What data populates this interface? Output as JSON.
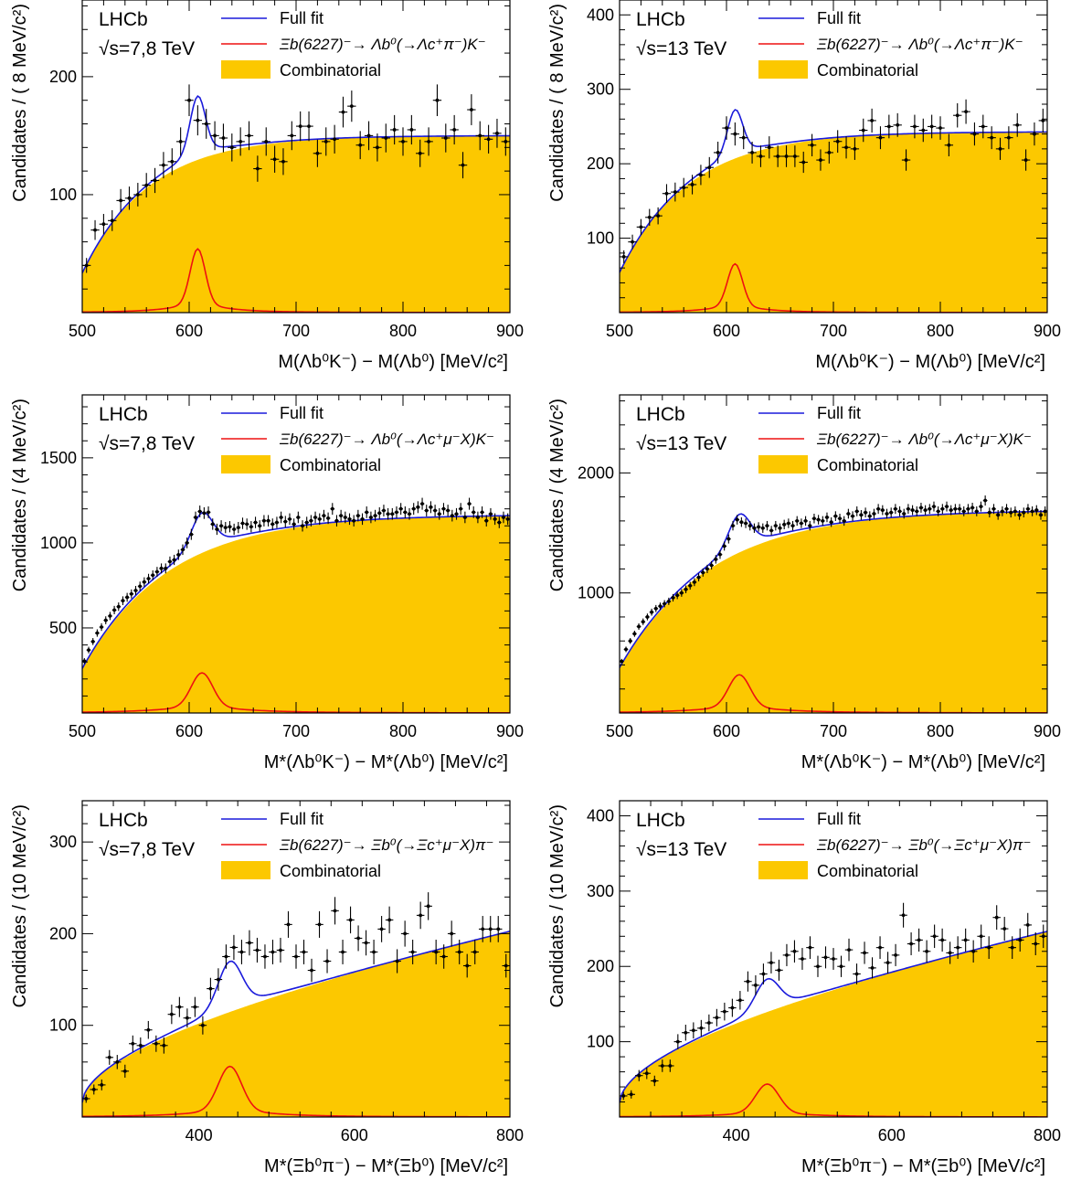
{
  "chart_data": [
    {
      "id": "p1",
      "type": "scatter",
      "experiment": "LHCb",
      "energy": "√s=7,8 TeV",
      "ylabel": "Candidates / ( 8 MeV/c²)",
      "xlabel": "M(Λb⁰K⁻) − M(Λb⁰) [MeV/c²]",
      "xlim": [
        500,
        900
      ],
      "ylim": [
        0,
        265
      ],
      "xticks": [
        500,
        600,
        700,
        800,
        900
      ],
      "yticks": [
        100,
        200
      ],
      "legend": {
        "position": "top",
        "full_fit": "Full fit",
        "signal": "Ξb(6227)⁻→ Λb⁰(→Λc⁺π⁻)K⁻",
        "background": "Combinatorial"
      },
      "colors": {
        "full_fit": "#1a1adb",
        "signal": "#ee1111",
        "background": "#fcc800"
      },
      "model": {
        "bkg_a": 150,
        "bkg_tau": 62,
        "bkg_plateau": 0.0,
        "sig_amp": 47,
        "sig_mean": 608,
        "sig_sigma": 7,
        "sig_tail": 0.15,
        "sig_tail_w": 30
      },
      "points": {
        "x": [
          504,
          512,
          520,
          528,
          536,
          544,
          552,
          560,
          568,
          576,
          584,
          592,
          600,
          608,
          616,
          624,
          632,
          640,
          648,
          656,
          664,
          672,
          680,
          688,
          696,
          704,
          712,
          720,
          728,
          736,
          744,
          752,
          760,
          768,
          776,
          784,
          792,
          800,
          808,
          816,
          824,
          832,
          840,
          848,
          856,
          864,
          872,
          880,
          888,
          896
        ],
        "y": [
          40,
          70,
          75,
          78,
          95,
          97,
          100,
          108,
          112,
          125,
          128,
          145,
          180,
          163,
          160,
          150,
          148,
          140,
          145,
          150,
          122,
          145,
          130,
          128,
          150,
          158,
          158,
          135,
          145,
          147,
          170,
          175,
          142,
          150,
          140,
          148,
          155,
          145,
          155,
          135,
          145,
          180,
          148,
          155,
          125,
          172,
          150,
          147,
          152,
          145
        ]
      }
    },
    {
      "id": "p2",
      "type": "scatter",
      "experiment": "LHCb",
      "energy": "√s=13 TeV",
      "ylabel": "Candidates / ( 8 MeV/c²)",
      "xlabel": "M(Λb⁰K⁻) − M(Λb⁰) [MeV/c²]",
      "xlim": [
        500,
        900
      ],
      "ylim": [
        0,
        420
      ],
      "xticks": [
        500,
        600,
        700,
        800,
        900
      ],
      "yticks": [
        100,
        200,
        300,
        400
      ],
      "legend": {
        "position": "top",
        "full_fit": "Full fit",
        "signal": "Ξb(6227)⁻→ Λb⁰(→Λc⁺π⁻)K⁻",
        "background": "Combinatorial"
      },
      "colors": {
        "full_fit": "#1a1adb",
        "signal": "#ee1111",
        "background": "#fcc800"
      },
      "model": {
        "bkg_a": 243,
        "bkg_tau": 65,
        "bkg_plateau": 0.0,
        "sig_amp": 57,
        "sig_mean": 608,
        "sig_sigma": 7,
        "sig_tail": 0.15,
        "sig_tail_w": 30
      },
      "points": {
        "x": [
          504,
          512,
          520,
          528,
          536,
          544,
          552,
          560,
          568,
          576,
          584,
          592,
          600,
          608,
          616,
          624,
          632,
          640,
          648,
          656,
          664,
          672,
          680,
          688,
          696,
          704,
          712,
          720,
          728,
          736,
          744,
          752,
          760,
          768,
          776,
          784,
          792,
          800,
          808,
          816,
          824,
          832,
          840,
          848,
          856,
          864,
          872,
          880,
          888,
          896
        ],
        "y": [
          75,
          95,
          115,
          128,
          130,
          160,
          162,
          168,
          172,
          185,
          195,
          215,
          248,
          240,
          235,
          215,
          210,
          222,
          210,
          210,
          210,
          202,
          225,
          205,
          215,
          230,
          222,
          220,
          245,
          258,
          235,
          250,
          252,
          205,
          250,
          245,
          250,
          248,
          225,
          265,
          270,
          240,
          250,
          235,
          220,
          235,
          252,
          205,
          240,
          258
        ]
      }
    },
    {
      "id": "p3",
      "type": "scatter",
      "experiment": "LHCb",
      "energy": "√s=7,8 TeV",
      "ylabel": "Candidates / (4 MeV/c²)",
      "xlabel": "M*(Λb⁰K⁻) − M*(Λb⁰) [MeV/c²]",
      "xlim": [
        500,
        900
      ],
      "ylim": [
        0,
        1870
      ],
      "xticks": [
        500,
        600,
        700,
        800,
        900
      ],
      "yticks": [
        500,
        1000,
        1500
      ],
      "legend": {
        "position": "top",
        "full_fit": "Full fit",
        "signal": "Ξb(6227)⁻→ Λb⁰(→Λc⁺μ⁻X)K⁻",
        "background": "Combinatorial"
      },
      "colors": {
        "full_fit": "#1a1adb",
        "signal": "#ee1111",
        "background": "#fcc800"
      },
      "model": {
        "bkg_a": 1165,
        "bkg_tau": 80,
        "bkg_plateau": 0.0,
        "sig_amp": 200,
        "sig_mean": 612,
        "sig_sigma": 10,
        "sig_tail": 0.18,
        "sig_tail_w": 45
      },
      "points": {
        "x": [
          502,
          506,
          510,
          514,
          518,
          522,
          526,
          530,
          534,
          538,
          542,
          546,
          550,
          554,
          558,
          562,
          566,
          570,
          574,
          578,
          582,
          586,
          590,
          594,
          598,
          602,
          606,
          610,
          614,
          618,
          622,
          626,
          630,
          634,
          638,
          642,
          646,
          650,
          654,
          658,
          662,
          666,
          670,
          674,
          678,
          682,
          686,
          690,
          694,
          698,
          702,
          706,
          710,
          714,
          718,
          722,
          726,
          730,
          734,
          738,
          742,
          746,
          750,
          754,
          758,
          762,
          766,
          770,
          774,
          778,
          782,
          786,
          790,
          794,
          798,
          802,
          806,
          810,
          814,
          818,
          822,
          826,
          830,
          834,
          838,
          842,
          846,
          850,
          854,
          858,
          862,
          866,
          870,
          874,
          878,
          882,
          886,
          890,
          894,
          898
        ],
        "y": [
          305,
          370,
          420,
          470,
          505,
          545,
          570,
          605,
          625,
          660,
          680,
          700,
          720,
          745,
          770,
          790,
          810,
          830,
          850,
          850,
          890,
          900,
          930,
          960,
          1000,
          1050,
          1150,
          1185,
          1175,
          1180,
          1110,
          1080,
          1100,
          1090,
          1095,
          1080,
          1090,
          1115,
          1110,
          1095,
          1120,
          1100,
          1130,
          1130,
          1110,
          1120,
          1150,
          1125,
          1140,
          1110,
          1150,
          1100,
          1120,
          1130,
          1150,
          1140,
          1160,
          1145,
          1200,
          1130,
          1160,
          1150,
          1140,
          1130,
          1160,
          1140,
          1180,
          1150,
          1160,
          1175,
          1190,
          1170,
          1170,
          1180,
          1200,
          1180,
          1170,
          1200,
          1210,
          1230,
          1190,
          1210,
          1190,
          1170,
          1200,
          1190,
          1160,
          1170,
          1200,
          1150,
          1230,
          1180,
          1150,
          1180,
          1130,
          1170,
          1140,
          1120,
          1150,
          1140
        ]
      }
    },
    {
      "id": "p4",
      "type": "scatter",
      "experiment": "LHCb",
      "energy": "√s=13 TeV",
      "ylabel": "Candidates / (4 MeV/c²)",
      "xlabel": "M*(Λb⁰K⁻) − M*(Λb⁰) [MeV/c²]",
      "xlim": [
        500,
        900
      ],
      "ylim": [
        0,
        2650
      ],
      "xticks": [
        500,
        600,
        700,
        800,
        900
      ],
      "yticks": [
        1000,
        2000
      ],
      "legend": {
        "position": "top",
        "full_fit": "Full fit",
        "signal": "Ξb(6227)⁻→ Λb⁰(→Λc⁺μ⁻X)K⁻",
        "background": "Combinatorial"
      },
      "colors": {
        "full_fit": "#1a1adb",
        "signal": "#ee1111",
        "background": "#fcc800"
      },
      "model": {
        "bkg_a": 1690,
        "bkg_tau": 85,
        "bkg_plateau": 0.0,
        "sig_amp": 270,
        "sig_mean": 612,
        "sig_sigma": 10,
        "sig_tail": 0.18,
        "sig_tail_w": 45
      },
      "points": {
        "x": [
          502,
          506,
          510,
          514,
          518,
          522,
          526,
          530,
          534,
          538,
          542,
          546,
          550,
          554,
          558,
          562,
          566,
          570,
          574,
          578,
          582,
          586,
          590,
          594,
          598,
          602,
          606,
          610,
          614,
          618,
          622,
          626,
          630,
          634,
          638,
          642,
          646,
          650,
          654,
          658,
          662,
          666,
          670,
          674,
          678,
          682,
          686,
          690,
          694,
          698,
          702,
          706,
          710,
          714,
          718,
          722,
          726,
          730,
          734,
          738,
          742,
          746,
          750,
          754,
          758,
          762,
          766,
          770,
          774,
          778,
          782,
          786,
          790,
          794,
          798,
          802,
          806,
          810,
          814,
          818,
          822,
          826,
          830,
          834,
          838,
          842,
          846,
          850,
          854,
          858,
          862,
          866,
          870,
          874,
          878,
          882,
          886,
          890,
          894,
          898
        ],
        "y": [
          430,
          530,
          600,
          660,
          720,
          760,
          800,
          840,
          870,
          890,
          910,
          930,
          960,
          980,
          1000,
          1030,
          1060,
          1090,
          1130,
          1170,
          1200,
          1230,
          1280,
          1320,
          1390,
          1450,
          1560,
          1610,
          1590,
          1580,
          1560,
          1540,
          1550,
          1540,
          1560,
          1520,
          1560,
          1540,
          1570,
          1580,
          1560,
          1600,
          1580,
          1600,
          1560,
          1620,
          1610,
          1600,
          1630,
          1590,
          1640,
          1620,
          1600,
          1660,
          1640,
          1680,
          1650,
          1670,
          1640,
          1660,
          1700,
          1690,
          1660,
          1670,
          1700,
          1680,
          1660,
          1700,
          1690,
          1680,
          1710,
          1690,
          1700,
          1720,
          1680,
          1700,
          1720,
          1690,
          1700,
          1700,
          1680,
          1700,
          1710,
          1680,
          1720,
          1770,
          1670,
          1700,
          1650,
          1680,
          1700,
          1670,
          1680,
          1650,
          1670,
          1700,
          1680,
          1690,
          1650,
          1680
        ]
      }
    },
    {
      "id": "p5",
      "type": "scatter",
      "experiment": "LHCb",
      "energy": "√s=7,8 TeV",
      "ylabel": "Candidates / (10 MeV/c²)",
      "xlabel": "M*(Ξb⁰π⁻) − M*(Ξb⁰) [MeV/c²]",
      "xlim": [
        250,
        800
      ],
      "ylim": [
        0,
        345
      ],
      "xticks": [
        400,
        600,
        800
      ],
      "yticks": [
        100,
        200,
        300
      ],
      "legend": {
        "position": "top",
        "full_fit": "Full fit",
        "signal": "Ξb(6227)⁻→ Ξb⁰(→Ξc⁺μ⁻X)π⁻",
        "background": "Combinatorial"
      },
      "colors": {
        "full_fit": "#1a1adb",
        "signal": "#ee1111",
        "background": "#fcc800"
      },
      "model": {
        "bkg_a": 230,
        "bkg_tau": 0,
        "bkg_plateau": 0.0,
        "sig_amp": 48,
        "sig_mean": 440,
        "sig_sigma": 15,
        "sig_tail": 0.15,
        "sig_tail_w": 60
      },
      "points": {
        "x": [
          255,
          265,
          275,
          285,
          295,
          305,
          315,
          325,
          335,
          345,
          355,
          365,
          375,
          385,
          395,
          405,
          415,
          425,
          435,
          445,
          455,
          465,
          475,
          485,
          495,
          505,
          515,
          525,
          535,
          545,
          555,
          565,
          575,
          585,
          595,
          605,
          615,
          625,
          635,
          645,
          655,
          665,
          675,
          685,
          695,
          705,
          715,
          725,
          735,
          745,
          755,
          765,
          775,
          785,
          795
        ],
        "y": [
          20,
          30,
          35,
          65,
          60,
          50,
          80,
          78,
          95,
          80,
          78,
          112,
          120,
          108,
          120,
          100,
          140,
          150,
          175,
          185,
          180,
          190,
          182,
          175,
          180,
          182,
          210,
          175,
          180,
          160,
          210,
          170,
          225,
          180,
          215,
          195,
          190,
          180,
          205,
          215,
          170,
          200,
          180,
          220,
          230,
          180,
          175,
          200,
          180,
          165,
          180,
          205,
          205,
          205,
          165
        ]
      }
    },
    {
      "id": "p6",
      "type": "scatter",
      "experiment": "LHCb",
      "energy": "√s=13 TeV",
      "ylabel": "Candidates / (10 MeV/c²)",
      "xlabel": "M*(Ξb⁰π⁻) − M*(Ξb⁰) [MeV/c²]",
      "xlim": [
        250,
        800
      ],
      "ylim": [
        0,
        420
      ],
      "xticks": [
        400,
        600,
        800
      ],
      "yticks": [
        100,
        200,
        300,
        400
      ],
      "legend": {
        "position": "top",
        "full_fit": "Full fit",
        "signal": "Ξb(6227)⁻→ Ξb⁰(→Ξc⁺μ⁻X)π⁻",
        "background": "Combinatorial"
      },
      "colors": {
        "full_fit": "#1a1adb",
        "signal": "#ee1111",
        "background": "#fcc800"
      },
      "model": {
        "bkg_a": 280,
        "bkg_tau": 0,
        "bkg_plateau": 0.0,
        "sig_amp": 38,
        "sig_mean": 440,
        "sig_sigma": 15,
        "sig_tail": 0.15,
        "sig_tail_w": 60
      },
      "points": {
        "x": [
          255,
          265,
          275,
          285,
          295,
          305,
          315,
          325,
          335,
          345,
          355,
          365,
          375,
          385,
          395,
          405,
          415,
          425,
          435,
          445,
          455,
          465,
          475,
          485,
          495,
          505,
          515,
          525,
          535,
          545,
          555,
          565,
          575,
          585,
          595,
          605,
          615,
          625,
          635,
          645,
          655,
          665,
          675,
          685,
          695,
          705,
          715,
          725,
          735,
          745,
          755,
          765,
          775,
          785,
          795
        ],
        "y": [
          28,
          30,
          55,
          58,
          48,
          68,
          68,
          100,
          112,
          115,
          118,
          125,
          132,
          140,
          145,
          155,
          180,
          175,
          190,
          205,
          195,
          215,
          220,
          210,
          225,
          200,
          212,
          210,
          200,
          222,
          190,
          218,
          198,
          225,
          205,
          215,
          268,
          230,
          235,
          220,
          240,
          235,
          218,
          225,
          235,
          220,
          240,
          225,
          265,
          250,
          225,
          235,
          255,
          230,
          240
        ]
      }
    }
  ]
}
